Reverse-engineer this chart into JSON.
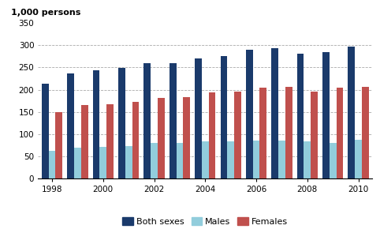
{
  "years": [
    1998,
    1999,
    2000,
    2001,
    2002,
    2003,
    2004,
    2005,
    2006,
    2007,
    2008,
    2009,
    2010
  ],
  "both_sexes": [
    213,
    236,
    244,
    249,
    260,
    260,
    271,
    276,
    290,
    294,
    280,
    285,
    296
  ],
  "males": [
    63,
    70,
    72,
    74,
    80,
    80,
    83,
    83,
    86,
    86,
    84,
    81,
    87
  ],
  "females": [
    150,
    165,
    168,
    172,
    181,
    183,
    193,
    195,
    204,
    207,
    196,
    204,
    207
  ],
  "color_both": "#1a3a6b",
  "color_males": "#92cddc",
  "color_females": "#c0504d",
  "ylabel": "1,000 persons",
  "ylim": [
    0,
    350
  ],
  "yticks": [
    0,
    50,
    100,
    150,
    200,
    250,
    300,
    350
  ],
  "grid_ticks": [
    50,
    100,
    150,
    200,
    250,
    300
  ],
  "legend_labels": [
    "Both sexes",
    "Males",
    "Females"
  ],
  "bar_width": 0.27,
  "background_color": "#ffffff"
}
